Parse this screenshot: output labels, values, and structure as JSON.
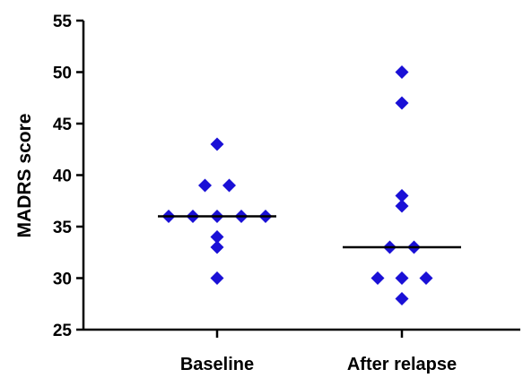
{
  "chart_data": {
    "type": "scatter",
    "subtype": "dot-plot-with-median",
    "title": "",
    "xlabel": "",
    "ylabel": "MADRS score",
    "ylim": [
      25,
      55
    ],
    "yticks": [
      25,
      30,
      35,
      40,
      45,
      50,
      55
    ],
    "categories": [
      "Baseline",
      "After relapse"
    ],
    "grid": false,
    "legend": "none",
    "marker": "diamond",
    "colors": {
      "points": "#1a10d6",
      "median": "#000000",
      "axis": "#000000"
    },
    "series": [
      {
        "category": "Baseline",
        "points": [
          43,
          39,
          39,
          36,
          36,
          36,
          36,
          36,
          34,
          33,
          30
        ],
        "median": 36
      },
      {
        "category": "After relapse",
        "points": [
          50,
          47,
          38,
          37,
          33,
          33,
          30,
          30,
          30,
          28
        ],
        "median": 33
      }
    ]
  }
}
